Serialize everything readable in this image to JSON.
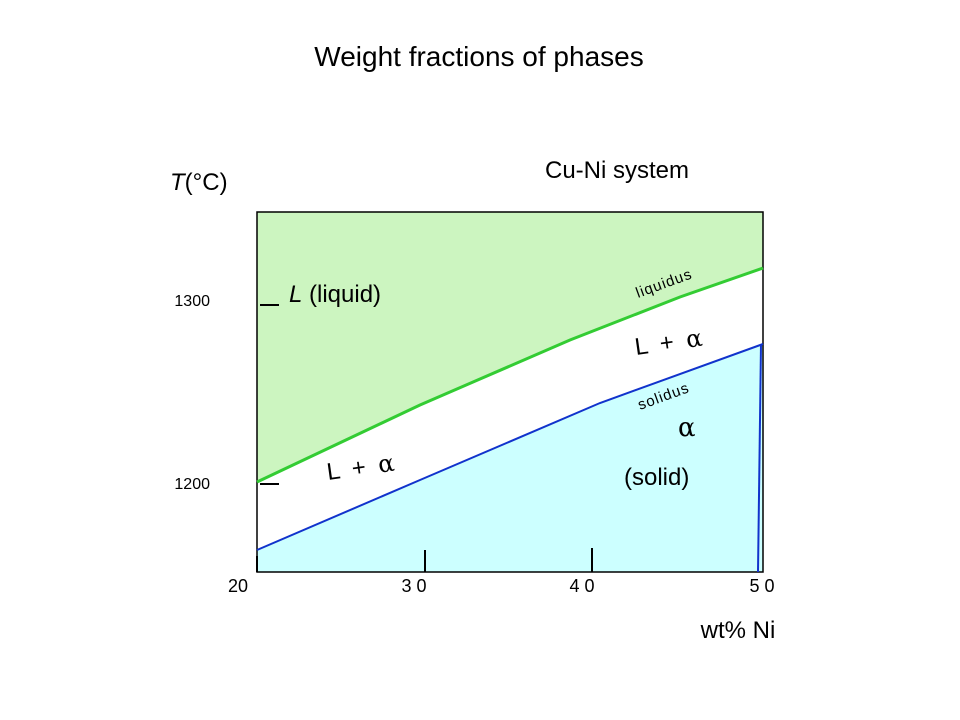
{
  "title": "Weight fractions of phases",
  "system_label": "Cu-Ni system",
  "y_axis": {
    "label_var": "T",
    "label_unit": "(°C)",
    "ticks": [
      {
        "value": 1300,
        "label": "1300"
      },
      {
        "value": 1200,
        "label": "1200"
      }
    ]
  },
  "x_axis": {
    "label": "wt% Ni",
    "range": [
      20,
      50
    ],
    "ticks": [
      {
        "value": 20,
        "label": "20"
      },
      {
        "value": 30,
        "label": "3 0"
      },
      {
        "value": 40,
        "label": "4 0"
      },
      {
        "value": 50,
        "label": "5 0"
      }
    ]
  },
  "regions": {
    "liquid": {
      "symbol": "L",
      "text": " (liquid)",
      "color": "#ccf5c0"
    },
    "two_phase_low": {
      "text": "L + ",
      "greek": "α"
    },
    "two_phase_high": {
      "text": "L + ",
      "greek": "α"
    },
    "solid": {
      "greek": "α",
      "text": "(solid)",
      "color": "#ccffff"
    }
  },
  "curves": {
    "liquidus": {
      "label": "liquidus",
      "color": "#33cc33"
    },
    "solidus": {
      "label": "solidus",
      "color": "#1133cc"
    }
  }
}
